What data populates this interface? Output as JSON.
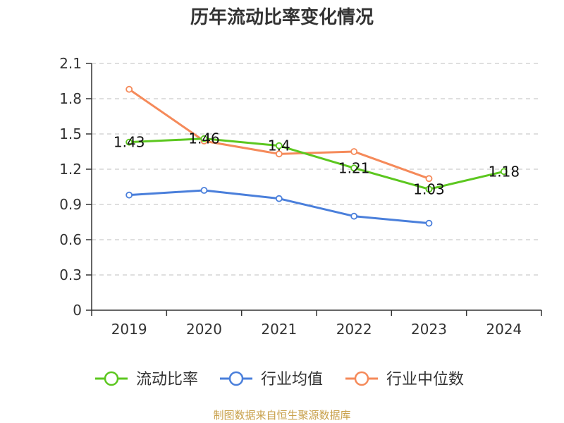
{
  "title": "历年流动比率变化情况",
  "source": "制图数据来自恒生聚源数据库",
  "chart_data": {
    "type": "line",
    "title": "历年流动比率变化情况",
    "categories": [
      "2019",
      "2020",
      "2021",
      "2022",
      "2023",
      "2024"
    ],
    "ylim": [
      0,
      2.1
    ],
    "yticks": [
      "0",
      "0.3",
      "0.6",
      "0.9",
      "1.2",
      "1.5",
      "1.8",
      "2.1"
    ],
    "grid": true,
    "legend_position": "bottom",
    "series": [
      {
        "name": "流动比率",
        "color": "#5cc71f",
        "values": [
          1.43,
          1.46,
          1.4,
          1.21,
          1.03,
          1.18
        ],
        "labels": [
          "1.43",
          "1.46",
          "1.4",
          "1.21",
          "1.03",
          "1.18"
        ]
      },
      {
        "name": "行业均值",
        "color": "#4a7fdb",
        "values": [
          0.98,
          1.02,
          0.95,
          0.8,
          0.74,
          null
        ]
      },
      {
        "name": "行业中位数",
        "color": "#f58a5a",
        "values": [
          1.88,
          1.44,
          1.33,
          1.35,
          1.12,
          null
        ]
      }
    ]
  }
}
